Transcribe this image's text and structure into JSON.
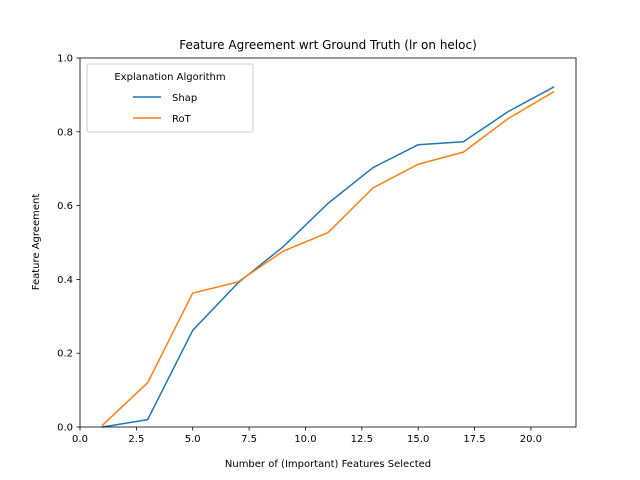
{
  "chart_data": {
    "type": "line",
    "title": "Feature Agreement wrt Ground Truth (lr on heloc)",
    "xlabel": "Number of (Important) Features Selected",
    "ylabel": "Feature Agreement",
    "xlim": [
      0.0,
      22.0
    ],
    "ylim": [
      0.0,
      1.0
    ],
    "x_ticks": [
      "0.0",
      "2.5",
      "5.0",
      "7.5",
      "10.0",
      "12.5",
      "15.0",
      "17.5",
      "20.0"
    ],
    "y_ticks": [
      "0.0",
      "0.2",
      "0.4",
      "0.6",
      "0.8",
      "1.0"
    ],
    "grid": false,
    "legend_title": "Explanation Algorithm",
    "legend_position": "top-left",
    "x": [
      1,
      3,
      5,
      7,
      9,
      11,
      13,
      15,
      17,
      19,
      21
    ],
    "series": [
      {
        "name": "Shap",
        "color": "#1f77b4",
        "values": [
          0.0,
          0.02,
          0.262,
          0.39,
          0.488,
          0.606,
          0.703,
          0.765,
          0.773,
          0.855,
          0.921
        ]
      },
      {
        "name": "RoT",
        "color": "#ff7f0e",
        "values": [
          0.005,
          0.12,
          0.363,
          0.393,
          0.476,
          0.527,
          0.648,
          0.712,
          0.745,
          0.836,
          0.908
        ]
      }
    ]
  }
}
